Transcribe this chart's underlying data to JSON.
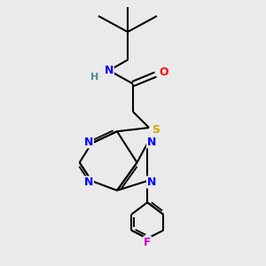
{
  "bg_color": "#eaeaea",
  "bond_color": "#000000",
  "N_color": "#0000ff",
  "O_color": "#ff0000",
  "S_color": "#ccaa00",
  "F_color": "#cc00cc",
  "H_color": "#4a8a8a",
  "line_width": 1.5,
  "figsize": [
    3.0,
    3.0
  ],
  "dpi": 100,
  "xlim": [
    0,
    10
  ],
  "ylim": [
    0,
    10
  ]
}
